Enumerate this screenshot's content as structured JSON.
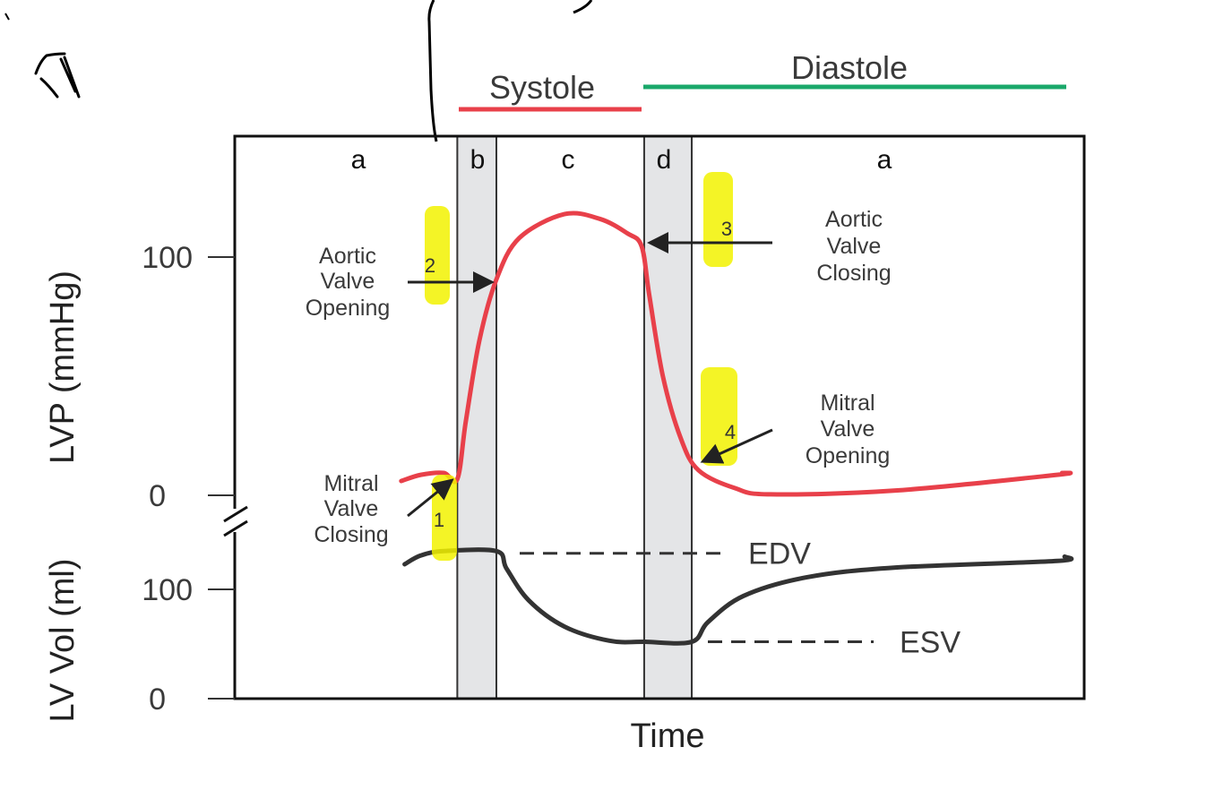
{
  "chart_data": {
    "type": "line",
    "xlabel": "Time",
    "phases": [
      {
        "label": "Systole",
        "color": "#e8404a"
      },
      {
        "label": "Diastole",
        "color": "#1aa86a"
      }
    ],
    "segments": [
      {
        "label": "a",
        "shaded": false
      },
      {
        "label": "b",
        "shaded": true,
        "t": [
          26.2,
          30.8
        ]
      },
      {
        "label": "c",
        "shaded": false
      },
      {
        "label": "d",
        "shaded": true,
        "t": [
          48.2,
          53.8
        ]
      },
      {
        "label": "a",
        "shaded": false
      }
    ],
    "panels": [
      {
        "ylabel": "LVP (mmHg)",
        "yticks": [
          "100",
          "0"
        ],
        "series": [
          {
            "color": "#e8404a",
            "points": [
              [
                19.6,
                6
              ],
              [
                21.9,
                8.6
              ],
              [
                24.6,
                9.4
              ],
              [
                26.2,
                6.8
              ],
              [
                27.2,
                31
              ],
              [
                28.8,
                65
              ],
              [
                30.8,
                90.6
              ],
              [
                33.5,
                108
              ],
              [
                38.8,
                118
              ],
              [
                43,
                116
              ],
              [
                46.2,
                110
              ],
              [
                47.9,
                104.5
              ],
              [
                48.8,
                84
              ],
              [
                50.4,
                50
              ],
              [
                52.5,
                24
              ],
              [
                54.6,
                10.5
              ],
              [
                58.9,
                3
              ],
              [
                63.1,
                0.4
              ],
              [
                77.8,
                2
              ],
              [
                96.8,
                8.6
              ],
              [
                97.4,
                9.4
              ]
            ]
          }
        ]
      },
      {
        "ylabel": "LV Vol (ml)",
        "yticks": [
          "100",
          "0"
        ],
        "series": [
          {
            "color": "#333333",
            "points": [
              [
                20,
                123
              ],
              [
                21.9,
                131
              ],
              [
                24.6,
                135
              ],
              [
                30.8,
                135
              ],
              [
                32,
                119
              ],
              [
                34.6,
                90
              ],
              [
                38.8,
                66
              ],
              [
                44.1,
                53
              ],
              [
                48.3,
                52
              ],
              [
                53.8,
                52
              ],
              [
                55.7,
                70
              ],
              [
                59.9,
                94
              ],
              [
                67.3,
                111
              ],
              [
                77.8,
                120
              ],
              [
                96.8,
                126
              ],
              [
                97.7,
                130
              ]
            ]
          }
        ],
        "reference_lines": [
          {
            "label": "EDV",
            "value": 133
          },
          {
            "label": "ESV",
            "value": 52
          }
        ]
      }
    ],
    "annotations": [
      {
        "lines": [
          "Mitral",
          "Valve",
          "Closing"
        ],
        "marker": "1"
      },
      {
        "lines": [
          "Aortic",
          "Valve",
          "Opening"
        ],
        "marker": "2"
      },
      {
        "lines": [
          "Aortic",
          "Valve",
          "Closing"
        ],
        "marker": "3"
      },
      {
        "lines": [
          "Mitral",
          "Valve",
          "Opening"
        ],
        "marker": "4"
      }
    ],
    "highlight_color": "#f2f200"
  }
}
